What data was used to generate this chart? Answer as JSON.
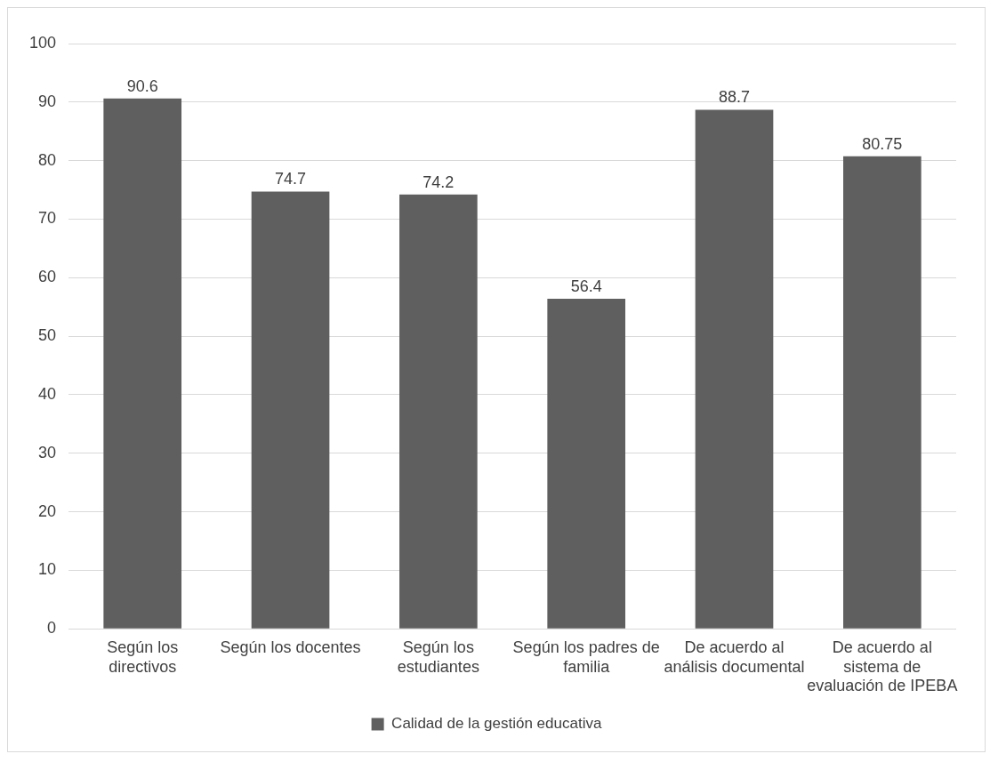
{
  "chart_data": {
    "type": "bar",
    "categories": [
      "Según los directivos",
      "Según los docentes",
      "Según los estudiantes",
      "Según los padres de familia",
      "De acuerdo al análisis documental",
      "De acuerdo al sistema de evaluación de IPEBA"
    ],
    "series": [
      {
        "name": "Calidad de la gestión educativa",
        "color": "#5f5f5f",
        "values": [
          90.6,
          74.7,
          74.2,
          56.4,
          88.7,
          80.75
        ]
      }
    ],
    "ylim": [
      0,
      100
    ],
    "yticks": [
      0,
      10,
      20,
      30,
      40,
      50,
      60,
      70,
      80,
      90,
      100
    ],
    "grid": "y",
    "legend": "bottom",
    "data_labels": true
  }
}
